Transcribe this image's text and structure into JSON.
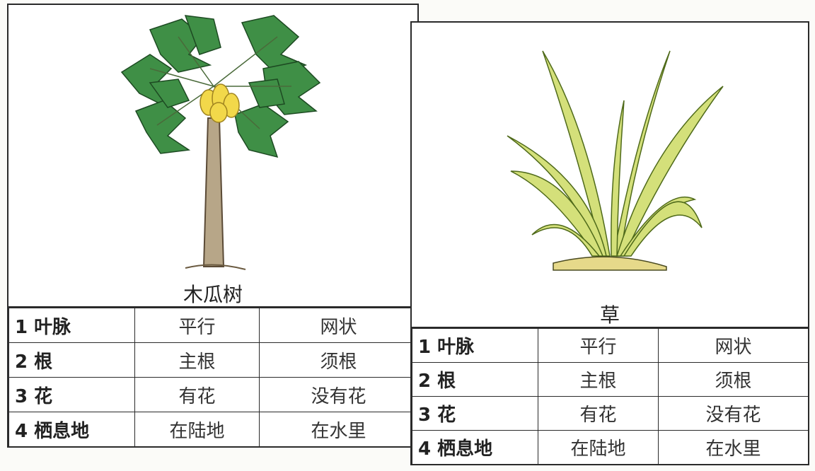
{
  "panels": [
    {
      "caption": "木瓜树",
      "table": {
        "rows": [
          [
            "1 叶脉",
            "平行",
            "网状"
          ],
          [
            "2 根",
            "主根",
            "须根"
          ],
          [
            "3 花",
            "有花",
            "没有花"
          ],
          [
            "4 栖息地",
            "在陆地",
            "在水里"
          ]
        ]
      }
    },
    {
      "caption": "草",
      "table": {
        "rows": [
          [
            "1 叶脉",
            "平行",
            "网状"
          ],
          [
            "2 根",
            "主根",
            "须根"
          ],
          [
            "3 花",
            "有花",
            "没有花"
          ],
          [
            "4 栖息地",
            "在陆地",
            "在水里"
          ]
        ]
      }
    }
  ]
}
